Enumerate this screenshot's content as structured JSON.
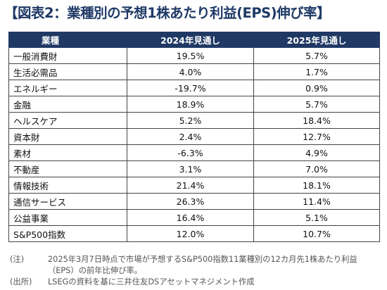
{
  "title": "【図表2：業種別の予想1株あたり利益(EPS)伸び率】",
  "table": {
    "headers": [
      "業種",
      "2024年見通し",
      "2025年見通し"
    ],
    "rows": [
      {
        "sector": "一般消費財",
        "y2024": "19.5%",
        "y2025": "5.7%"
      },
      {
        "sector": "生活必需品",
        "y2024": "4.0%",
        "y2025": "1.7%"
      },
      {
        "sector": "エネルギー",
        "y2024": "-19.7%",
        "y2025": "0.9%"
      },
      {
        "sector": "金融",
        "y2024": "18.9%",
        "y2025": "5.7%"
      },
      {
        "sector": "ヘルスケア",
        "y2024": "5.2%",
        "y2025": "18.4%"
      },
      {
        "sector": "資本財",
        "y2024": "2.4%",
        "y2025": "12.7%"
      },
      {
        "sector": "素材",
        "y2024": "-6.3%",
        "y2025": "4.9%"
      },
      {
        "sector": "不動産",
        "y2024": "3.1%",
        "y2025": "7.0%"
      },
      {
        "sector": "情報技術",
        "y2024": "21.4%",
        "y2025": "18.1%"
      },
      {
        "sector": "通信サービス",
        "y2024": "26.3%",
        "y2025": "11.4%"
      },
      {
        "sector": "公益事業",
        "y2024": "16.4%",
        "y2025": "5.1%"
      },
      {
        "sector": "S&P500指数",
        "y2024": "12.0%",
        "y2025": "10.7%"
      }
    ]
  },
  "notes": [
    {
      "tag": "(注)",
      "text": "2025年3月7日時点で市場が予想するS&P500指数11業種別の12カ月先1株あたり利益（EPS）の前年比伸び率。"
    },
    {
      "tag": "(出所)",
      "text": "LSEGの資料を基に三井住友DSアセットマネジメント作成"
    }
  ],
  "colors": {
    "header_bg": "#1f3864",
    "title": "#1f3a66"
  }
}
